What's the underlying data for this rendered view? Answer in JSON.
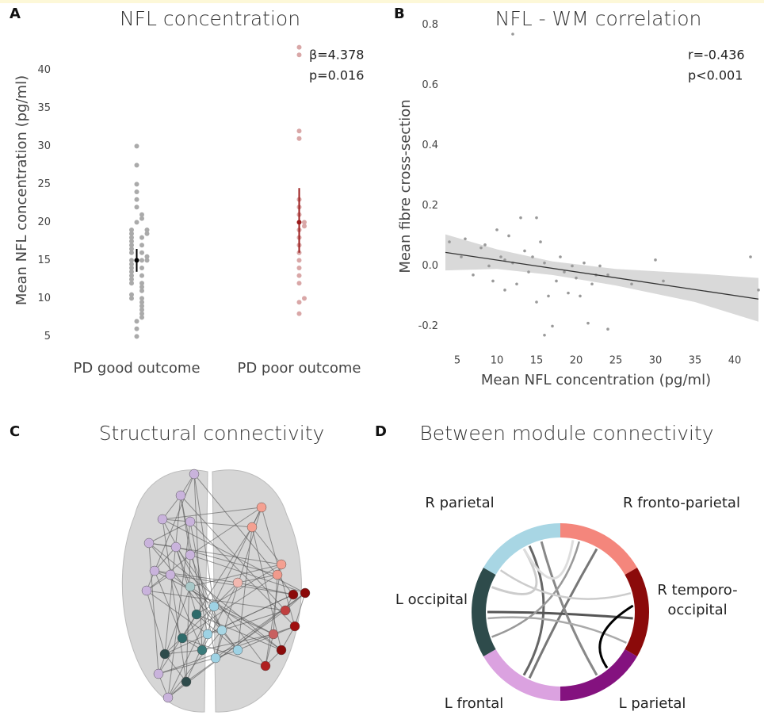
{
  "chart_data": [
    {
      "type": "strip",
      "panel_label": "A",
      "title": "NFL concentration",
      "y_label": "Mean NFL concentration (pg/ml)",
      "categories": [
        "PD good outcome",
        "PD poor outcome"
      ],
      "values": [
        [
          5,
          6,
          7,
          7.5,
          8,
          8.5,
          9,
          9.5,
          10,
          10,
          10.5,
          11,
          11.5,
          12,
          12,
          12.5,
          13,
          13,
          13.5,
          14,
          14,
          14.5,
          15,
          15,
          15,
          15.5,
          16,
          16,
          16.5,
          17,
          17,
          17.5,
          18,
          18,
          18.5,
          18.5,
          19,
          19,
          20,
          20.5,
          21,
          22,
          23,
          24,
          25,
          27.5,
          30
        ],
        [
          8,
          9.5,
          10,
          12,
          13,
          14,
          15,
          16,
          17,
          18,
          19,
          19.5,
          20,
          21,
          22,
          23,
          31,
          32,
          42,
          43
        ]
      ],
      "means": [
        15,
        20
      ],
      "ci_low": [
        13.5,
        16
      ],
      "ci_high": [
        16.5,
        24.5
      ],
      "colors": [
        "#aaaaaa",
        "#d9a7a7"
      ],
      "stat_colors": [
        "#000000",
        "#9b1b1b"
      ],
      "ylim": [
        4,
        44
      ],
      "yticks": [
        5,
        10,
        15,
        20,
        25,
        30,
        35,
        40
      ],
      "grid": false,
      "annotations": [
        "β=4.378",
        "p=0.016"
      ]
    },
    {
      "type": "scatter",
      "panel_label": "B",
      "title": "NFL - WM correlation",
      "x_label": "Mean NFL concentration (pg/ml)",
      "y_label": "Mean fibre cross-section",
      "x": [
        4,
        5.5,
        6,
        7,
        8,
        8.5,
        9,
        9.5,
        10,
        10.5,
        11,
        11,
        11.5,
        12,
        12,
        12.5,
        13,
        13.5,
        14,
        14.5,
        15,
        15,
        15.5,
        16,
        16.5,
        17,
        17.5,
        18,
        18.5,
        19,
        19.5,
        20,
        20.5,
        21,
        22,
        22.5,
        23,
        24,
        24,
        27,
        30,
        31,
        42,
        43,
        16,
        21.5
      ],
      "values": [
        0.08,
        0.03,
        0.09,
        -0.03,
        0.06,
        0.07,
        0,
        -0.05,
        0.12,
        0.03,
        0.02,
        -0.08,
        0.1,
        0.01,
        0.77,
        -0.06,
        0.16,
        0.05,
        -0.02,
        0.03,
        0.16,
        -0.12,
        0.08,
        0.01,
        -0.1,
        -0.2,
        -0.05,
        0.03,
        -0.02,
        -0.09,
        0,
        -0.04,
        -0.1,
        0.01,
        -0.06,
        -0.03,
        0,
        -0.21,
        -0.03,
        -0.06,
        0.02,
        -0.05,
        0.03,
        -0.08,
        -0.23,
        -0.19
      ],
      "color": "#999999",
      "fit": {
        "x": [
          3.5,
          43
        ],
        "values": [
          0.045,
          -0.11
        ],
        "color": "#333333"
      },
      "band": {
        "x": [
          3.5,
          10,
          17,
          25,
          35,
          43
        ],
        "upper": [
          0.105,
          0.055,
          0.015,
          -0.01,
          -0.025,
          -0.04
        ],
        "lower": [
          -0.015,
          -0.01,
          -0.03,
          -0.065,
          -0.12,
          -0.185
        ],
        "color": "#d9d9d9"
      },
      "xlim": [
        3,
        43.3
      ],
      "xticks": [
        5,
        10,
        15,
        20,
        25,
        30,
        35,
        40
      ],
      "ylim": [
        -0.27,
        0.82
      ],
      "yticks": [
        -0.2,
        {
          "value": 0,
          "label": "0.0"
        },
        0.2,
        0.4,
        0.6,
        0.8
      ],
      "grid": false,
      "annotations": [
        "r=-0.436",
        "p<0.001"
      ]
    }
  ],
  "panel_c": {
    "letter": "C",
    "title": "Structural connectivity"
  },
  "panel_d": {
    "letter": "D",
    "title": "Between module connectivity",
    "modules": [
      {
        "label": [
          "R fronto-parietal"
        ],
        "color": "#f4867c"
      },
      {
        "label": [
          "R temporo-",
          "occipital"
        ],
        "color": "#8b0a0a"
      },
      {
        "label": [
          "L parietal"
        ],
        "color": "#84127f"
      },
      {
        "label": [
          "L frontal"
        ],
        "color": "#dba2e0"
      },
      {
        "label": [
          "L occipital"
        ],
        "color": "#2e4b4b"
      },
      {
        "label": [
          "R parietal"
        ],
        "color": "#a8d6e4"
      }
    ]
  }
}
